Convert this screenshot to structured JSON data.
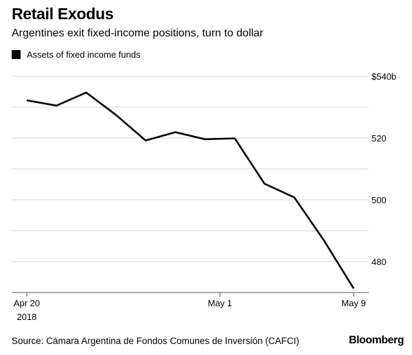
{
  "chart_data": {
    "type": "line",
    "title": "Retail Exodus",
    "subtitle": "Argentines exit fixed-income positions, turn to dollar",
    "legend": [
      {
        "name": "Assets of fixed income funds",
        "color": "#000000"
      }
    ],
    "legend_placement": "top-left",
    "series": [
      {
        "name": "Assets of fixed income funds",
        "color": "#000000",
        "x": [
          "2018-04-20",
          "2018-04-22",
          "2018-04-23",
          "2018-04-25",
          "2018-04-27",
          "2018-04-29",
          "2018-04-30",
          "2018-05-02",
          "2018-05-04",
          "2018-05-05",
          "2018-05-07",
          "2018-05-09"
        ],
        "values": [
          532.2,
          530.5,
          534.7,
          527.5,
          519.2,
          521.9,
          519.6,
          519.9,
          505.2,
          500.8,
          486.9,
          471.3
        ]
      }
    ],
    "ylim": [
      470,
      540
    ],
    "y_ticks": [
      {
        "value": 540,
        "label": "$540b"
      },
      {
        "value": 520,
        "label": "520"
      },
      {
        "value": 500,
        "label": "500"
      },
      {
        "value": 480,
        "label": "480"
      }
    ],
    "y_gridlines": [
      540,
      530,
      520,
      510,
      500,
      490,
      480
    ],
    "y_axis_side": "right",
    "x_ticks": [
      {
        "date": "2018-04-20",
        "label": "Apr 20",
        "sublabel": "2018"
      },
      {
        "date": "2018-05-01",
        "label": "May 1",
        "sublabel": ""
      },
      {
        "date": "2018-05-09",
        "label": "May 9",
        "sublabel": ""
      }
    ],
    "grid": true,
    "gridline_color": "#dddddd"
  },
  "footer": {
    "source": "Source: Cámara Argentina de Fondos Comunes de Inversión (CAFCI)",
    "brand": "Bloomberg"
  }
}
